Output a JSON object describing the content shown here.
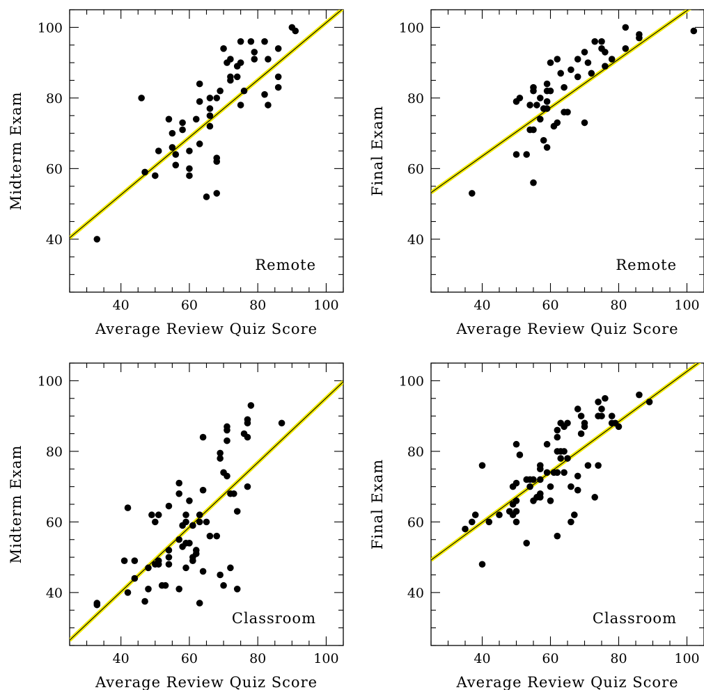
{
  "chart_data": [
    {
      "type": "scatter",
      "xlabel": "Average Review Quiz Score",
      "ylabel": "Midterm Exam",
      "label": "Remote",
      "xlim": [
        25,
        105
      ],
      "ylim": [
        25,
        105
      ],
      "xticks": [
        40,
        60,
        80,
        100
      ],
      "yticks": [
        40,
        60,
        80,
        100
      ],
      "fit_line": {
        "x": [
          25,
          105
        ],
        "y": [
          40.4,
          105.4
        ]
      },
      "points": [
        [
          33,
          40
        ],
        [
          46,
          80
        ],
        [
          47,
          59
        ],
        [
          50,
          58
        ],
        [
          51,
          65
        ],
        [
          54,
          74
        ],
        [
          55,
          70
        ],
        [
          55,
          66
        ],
        [
          56,
          64
        ],
        [
          56,
          61
        ],
        [
          58,
          73
        ],
        [
          58,
          71
        ],
        [
          60,
          65
        ],
        [
          60,
          60
        ],
        [
          60,
          58
        ],
        [
          62,
          74
        ],
        [
          63,
          84
        ],
        [
          63,
          79
        ],
        [
          63,
          67
        ],
        [
          65,
          52
        ],
        [
          66,
          80
        ],
        [
          66,
          77
        ],
        [
          66,
          75
        ],
        [
          66,
          72
        ],
        [
          68,
          80
        ],
        [
          68,
          63
        ],
        [
          68,
          62
        ],
        [
          68,
          53
        ],
        [
          69,
          82
        ],
        [
          70,
          94
        ],
        [
          71,
          90
        ],
        [
          72,
          91
        ],
        [
          72,
          86
        ],
        [
          72,
          85
        ],
        [
          74,
          89
        ],
        [
          74,
          86
        ],
        [
          75,
          96
        ],
        [
          75,
          90
        ],
        [
          75,
          78
        ],
        [
          76,
          82
        ],
        [
          78,
          96
        ],
        [
          79,
          93
        ],
        [
          79,
          91
        ],
        [
          82,
          96
        ],
        [
          82,
          81
        ],
        [
          83,
          91
        ],
        [
          83,
          78
        ],
        [
          86,
          94
        ],
        [
          86,
          86
        ],
        [
          86,
          83
        ],
        [
          90,
          100
        ],
        [
          91,
          99
        ]
      ]
    },
    {
      "type": "scatter",
      "xlabel": "Average Review Quiz Score",
      "ylabel": "Final Exam",
      "label": "Remote",
      "xlim": [
        25,
        105
      ],
      "ylim": [
        25,
        105
      ],
      "xticks": [
        40,
        60,
        80,
        100
      ],
      "yticks": [
        40,
        60,
        80,
        100
      ],
      "fit_line": {
        "x": [
          25,
          105
        ],
        "y": [
          53.2,
          108.2
        ]
      },
      "points": [
        [
          37,
          53
        ],
        [
          50,
          79
        ],
        [
          50,
          64
        ],
        [
          51,
          80
        ],
        [
          53,
          64
        ],
        [
          54,
          71
        ],
        [
          54,
          78
        ],
        [
          55,
          83
        ],
        [
          55,
          82
        ],
        [
          55,
          71
        ],
        [
          55,
          56
        ],
        [
          56,
          78
        ],
        [
          57,
          74
        ],
        [
          57,
          80
        ],
        [
          58,
          77
        ],
        [
          58,
          68
        ],
        [
          59,
          82
        ],
        [
          59,
          79
        ],
        [
          59,
          84
        ],
        [
          59,
          77
        ],
        [
          59,
          66
        ],
        [
          60,
          90
        ],
        [
          60,
          82
        ],
        [
          61,
          72
        ],
        [
          62,
          91
        ],
        [
          62,
          73
        ],
        [
          63,
          87
        ],
        [
          64,
          83
        ],
        [
          64,
          76
        ],
        [
          65,
          76
        ],
        [
          66,
          88
        ],
        [
          68,
          91
        ],
        [
          68,
          86
        ],
        [
          70,
          93
        ],
        [
          70,
          73
        ],
        [
          71,
          90
        ],
        [
          72,
          87
        ],
        [
          73,
          96
        ],
        [
          75,
          96
        ],
        [
          75,
          94
        ],
        [
          76,
          93
        ],
        [
          76,
          89
        ],
        [
          78,
          91
        ],
        [
          82,
          100
        ],
        [
          82,
          94
        ],
        [
          86,
          97
        ],
        [
          86,
          98
        ],
        [
          102,
          99
        ]
      ]
    },
    {
      "type": "scatter",
      "xlabel": "Average Review Quiz Score",
      "ylabel": "Midterm Exam",
      "label": "Classroom",
      "xlim": [
        25,
        105
      ],
      "ylim": [
        25,
        105
      ],
      "xticks": [
        40,
        60,
        80,
        100
      ],
      "yticks": [
        40,
        60,
        80,
        100
      ],
      "fit_line": {
        "x": [
          25,
          105
        ],
        "y": [
          26.5,
          99.7
        ]
      },
      "points": [
        [
          33,
          37
        ],
        [
          33,
          36.5
        ],
        [
          41,
          49
        ],
        [
          42,
          64
        ],
        [
          42,
          40
        ],
        [
          44,
          49
        ],
        [
          44,
          44
        ],
        [
          47,
          37.5
        ],
        [
          48,
          41
        ],
        [
          48,
          47
        ],
        [
          49,
          62
        ],
        [
          50,
          60
        ],
        [
          50,
          48
        ],
        [
          51,
          62
        ],
        [
          51,
          49
        ],
        [
          51,
          48
        ],
        [
          52,
          42
        ],
        [
          53,
          42
        ],
        [
          54,
          64.5
        ],
        [
          54,
          52
        ],
        [
          54,
          50
        ],
        [
          54,
          48
        ],
        [
          57,
          71
        ],
        [
          57,
          68
        ],
        [
          57,
          55
        ],
        [
          57,
          41
        ],
        [
          58,
          59
        ],
        [
          58,
          53
        ],
        [
          59,
          62
        ],
        [
          59,
          60
        ],
        [
          59,
          54
        ],
        [
          59,
          47
        ],
        [
          60,
          66
        ],
        [
          60,
          54
        ],
        [
          61,
          59
        ],
        [
          61,
          50
        ],
        [
          61,
          49
        ],
        [
          62,
          52
        ],
        [
          62,
          51
        ],
        [
          63,
          62
        ],
        [
          63,
          60
        ],
        [
          63,
          37
        ],
        [
          64,
          84
        ],
        [
          64,
          69
        ],
        [
          64,
          46
        ],
        [
          65,
          60
        ],
        [
          66,
          56
        ],
        [
          68,
          56
        ],
        [
          69,
          79.5
        ],
        [
          69,
          78
        ],
        [
          69,
          45
        ],
        [
          70,
          74
        ],
        [
          70,
          42
        ],
        [
          71,
          87
        ],
        [
          71,
          86
        ],
        [
          71,
          83
        ],
        [
          71,
          73
        ],
        [
          72,
          68
        ],
        [
          72,
          47
        ],
        [
          73,
          68
        ],
        [
          74,
          63
        ],
        [
          74,
          41
        ],
        [
          76,
          85
        ],
        [
          77,
          89
        ],
        [
          77,
          88
        ],
        [
          77,
          84
        ],
        [
          77,
          70
        ],
        [
          78,
          93
        ],
        [
          87,
          88
        ]
      ]
    },
    {
      "type": "scatter",
      "xlabel": "Average Review Quiz Score",
      "ylabel": "Final Exam",
      "label": "Classroom",
      "xlim": [
        25,
        105
      ],
      "ylim": [
        25,
        105
      ],
      "xticks": [
        40,
        60,
        80,
        100
      ],
      "yticks": [
        40,
        60,
        80,
        100
      ],
      "fit_line": {
        "x": [
          25,
          105
        ],
        "y": [
          49.2,
          106.2
        ]
      },
      "points": [
        [
          35,
          58
        ],
        [
          37,
          60
        ],
        [
          38,
          62
        ],
        [
          40,
          76
        ],
        [
          40,
          48
        ],
        [
          42,
          60
        ],
        [
          45,
          62
        ],
        [
          48,
          63
        ],
        [
          49,
          65
        ],
        [
          49,
          62
        ],
        [
          49,
          70
        ],
        [
          50,
          71
        ],
        [
          50,
          66
        ],
        [
          50,
          63
        ],
        [
          50,
          60
        ],
        [
          50,
          82
        ],
        [
          51,
          79
        ],
        [
          53,
          72
        ],
        [
          53,
          54
        ],
        [
          54,
          72
        ],
        [
          54,
          70
        ],
        [
          55,
          72
        ],
        [
          55,
          66
        ],
        [
          56,
          67
        ],
        [
          57,
          76
        ],
        [
          57,
          75
        ],
        [
          57,
          72
        ],
        [
          57,
          68
        ],
        [
          57,
          67
        ],
        [
          59,
          82
        ],
        [
          59,
          74
        ],
        [
          60,
          66
        ],
        [
          60,
          70
        ],
        [
          61,
          74
        ],
        [
          62,
          86
        ],
        [
          62,
          84
        ],
        [
          62,
          80
        ],
        [
          62,
          74
        ],
        [
          62,
          56
        ],
        [
          63,
          88
        ],
        [
          63,
          80
        ],
        [
          63,
          78
        ],
        [
          64,
          87
        ],
        [
          64,
          80
        ],
        [
          64,
          74
        ],
        [
          65,
          88
        ],
        [
          65,
          78
        ],
        [
          66,
          70
        ],
        [
          66,
          60
        ],
        [
          67,
          62
        ],
        [
          68,
          92
        ],
        [
          68,
          73
        ],
        [
          68,
          69
        ],
        [
          69,
          90
        ],
        [
          69,
          85
        ],
        [
          70,
          87
        ],
        [
          70,
          88
        ],
        [
          71,
          76
        ],
        [
          73,
          67
        ],
        [
          74,
          94
        ],
        [
          74,
          90
        ],
        [
          74,
          76
        ],
        [
          75,
          92
        ],
        [
          75,
          90
        ],
        [
          76,
          95
        ],
        [
          78,
          90
        ],
        [
          78,
          88
        ],
        [
          79,
          88
        ],
        [
          80,
          87
        ],
        [
          86,
          96
        ],
        [
          89,
          94
        ]
      ]
    }
  ]
}
